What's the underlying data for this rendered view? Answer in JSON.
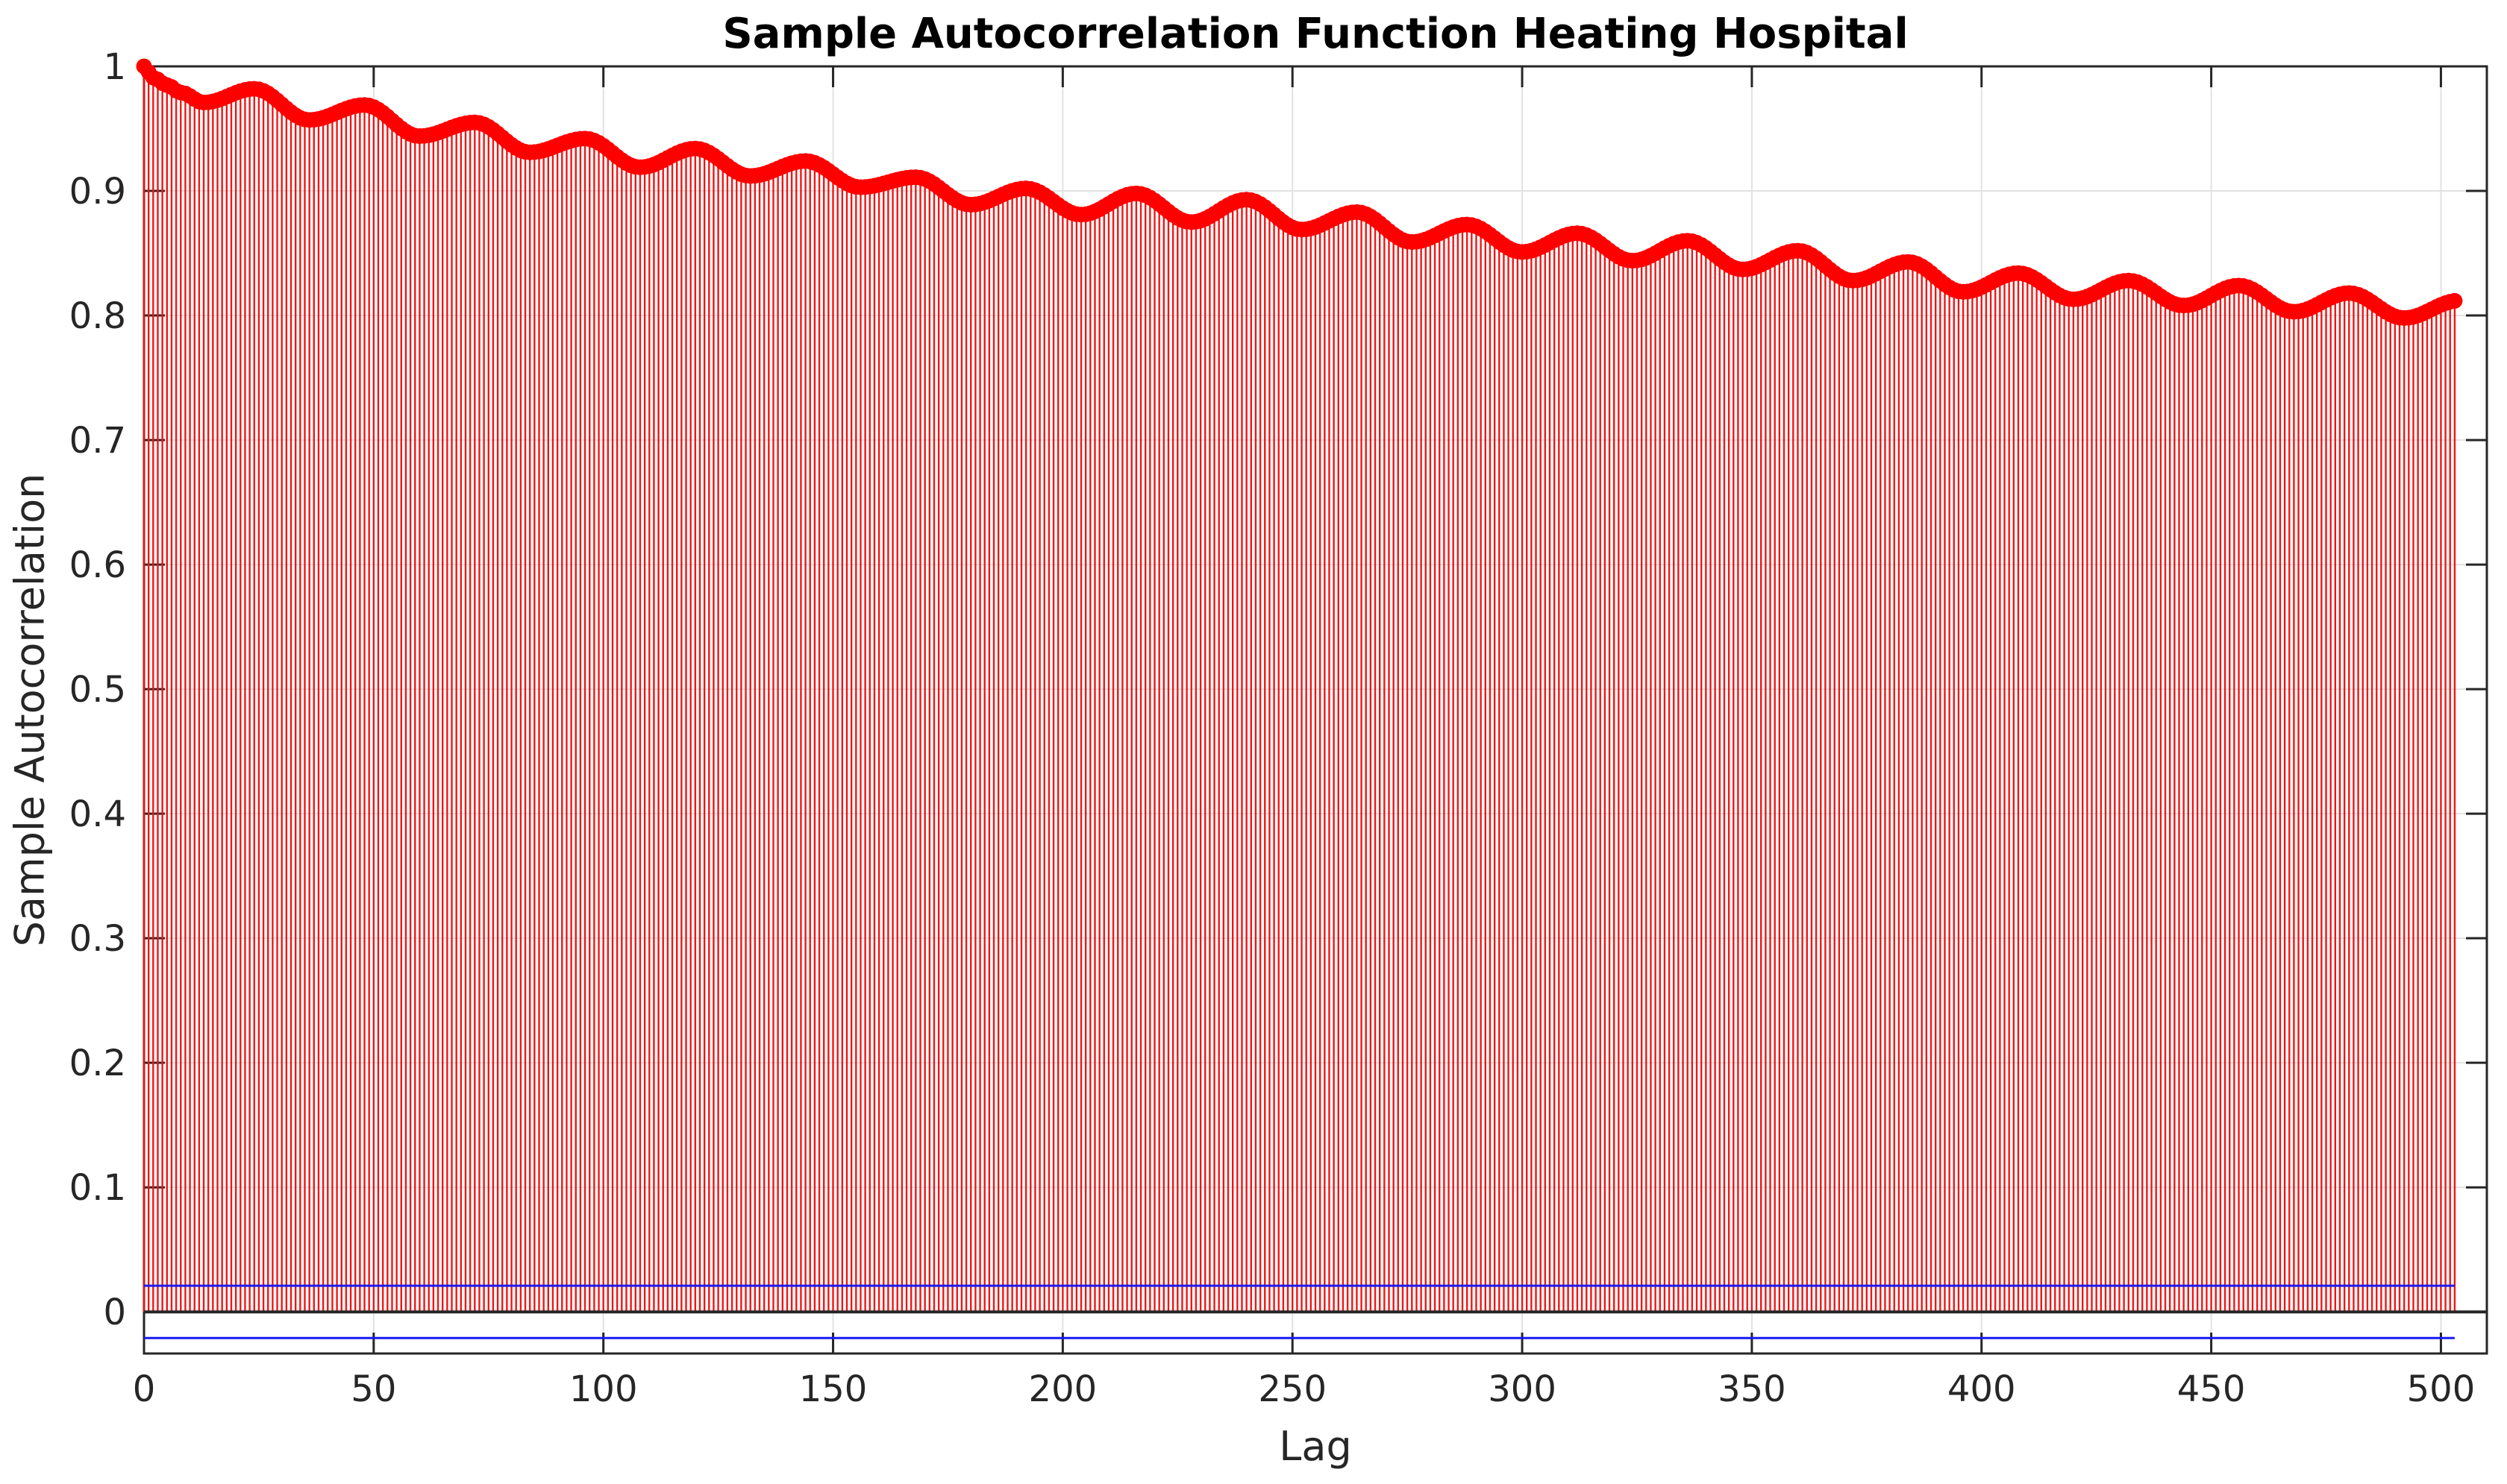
{
  "chart_data": {
    "type": "stem",
    "title": "Sample Autocorrelation Function Heating Hospital",
    "xlabel": "Lag",
    "ylabel": "Sample Autocorrelation",
    "xlim": [
      0,
      510
    ],
    "ylim": [
      -0.0334,
      1.0
    ],
    "xticks": [
      0,
      50,
      100,
      150,
      200,
      250,
      300,
      350,
      400,
      450,
      500
    ],
    "yticks": [
      0,
      0.1,
      0.2,
      0.3,
      0.4,
      0.5,
      0.6,
      0.7,
      0.8,
      0.9,
      1
    ],
    "grid": true,
    "legend": null,
    "max_lag": 503,
    "seasonal_period": 24,
    "confidence_bounds": {
      "upper": 0.021,
      "lower": -0.021
    },
    "acf_envelope_anchors": [
      [
        0,
        1.0
      ],
      [
        2,
        0.991
      ],
      [
        5,
        0.985
      ],
      [
        8,
        0.979
      ],
      [
        13,
        0.971
      ],
      [
        24,
        0.982
      ],
      [
        36,
        0.957
      ],
      [
        48,
        0.969
      ],
      [
        60,
        0.944
      ],
      [
        72,
        0.955
      ],
      [
        84,
        0.931
      ],
      [
        96,
        0.942
      ],
      [
        108,
        0.919
      ],
      [
        120,
        0.934
      ],
      [
        132,
        0.912
      ],
      [
        144,
        0.924
      ],
      [
        156,
        0.903
      ],
      [
        168,
        0.911
      ],
      [
        180,
        0.889
      ],
      [
        192,
        0.902
      ],
      [
        204,
        0.881
      ],
      [
        216,
        0.898
      ],
      [
        228,
        0.875
      ],
      [
        240,
        0.893
      ],
      [
        252,
        0.869
      ],
      [
        264,
        0.883
      ],
      [
        276,
        0.859
      ],
      [
        288,
        0.873
      ],
      [
        300,
        0.851
      ],
      [
        312,
        0.866
      ],
      [
        324,
        0.844
      ],
      [
        336,
        0.86
      ],
      [
        348,
        0.837
      ],
      [
        360,
        0.852
      ],
      [
        372,
        0.828
      ],
      [
        384,
        0.843
      ],
      [
        396,
        0.819
      ],
      [
        408,
        0.834
      ],
      [
        420,
        0.813
      ],
      [
        432,
        0.828
      ],
      [
        444,
        0.808
      ],
      [
        456,
        0.824
      ],
      [
        468,
        0.803
      ],
      [
        480,
        0.818
      ],
      [
        492,
        0.798
      ],
      [
        504,
        0.812
      ]
    ],
    "colors": {
      "stem": "#f01515",
      "marker": "#ff0000",
      "confidence": "#1a1af0",
      "baseline": "#262626",
      "grid": "#e2e2e2",
      "axis": "#262626",
      "tick_label": "#262626",
      "title": "#000000",
      "background": "#ffffff"
    }
  }
}
